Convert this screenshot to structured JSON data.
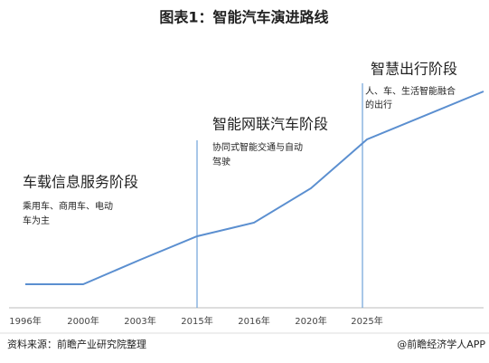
{
  "header": {
    "title": "图表1：智能汽车演进路线"
  },
  "stages": [
    {
      "title": "车载信息服务阶段",
      "description": [
        "乘用车、商用车、电动",
        "车为主"
      ]
    },
    {
      "title": "智能网联汽车阶段",
      "description": [
        "协同式智能交通与自动",
        "驾驶"
      ]
    },
    {
      "title": "智慧出行阶段",
      "description": [
        "人、车、生活智能融合",
        "的出行"
      ]
    }
  ],
  "timeline": [
    "1996年",
    "2000年",
    "2003年",
    "2015年",
    "2016年",
    "2020年",
    "2025年"
  ],
  "footer": {
    "source": "资料来源：前瞻产业研究院整理",
    "credit": "@前瞻经济学人APP"
  }
}
